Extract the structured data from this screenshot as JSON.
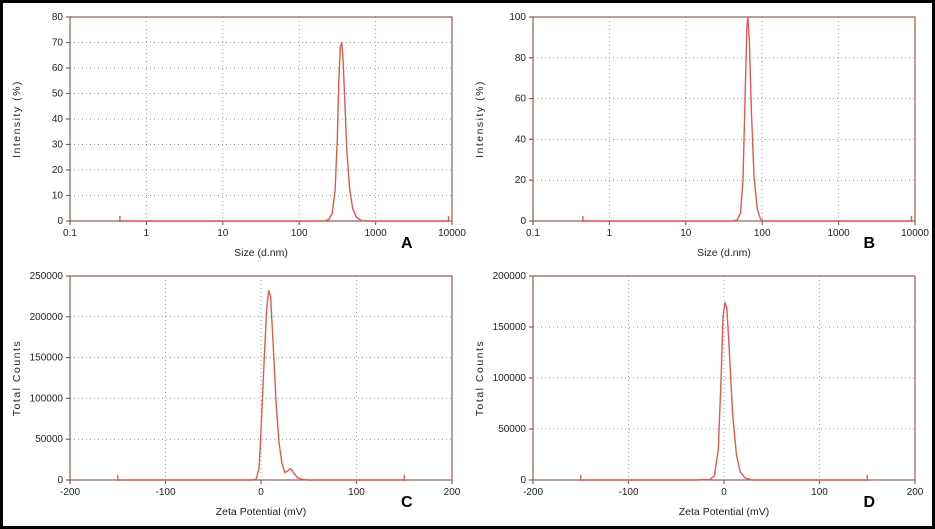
{
  "colors": {
    "curve": "#df5a52",
    "axis": "#8b5d52",
    "grid": "#9c9c9c",
    "text": "#222222",
    "frame_border": "#000000"
  },
  "chart_data": [
    {
      "panel_label": "A",
      "type": "line",
      "title": "",
      "xlabel": "Size (d.nm)",
      "ylabel": "Intensity (%)",
      "xscale": "log",
      "xlim": [
        0.1,
        10000
      ],
      "ylim": [
        0,
        80
      ],
      "xticks": [
        0.1,
        1,
        10,
        100,
        1000,
        10000
      ],
      "xtick_labels": [
        "0.1",
        "1",
        "10",
        "100",
        "1000",
        "10000"
      ],
      "yticks": [
        0,
        10,
        20,
        30,
        40,
        50,
        60,
        70,
        80
      ],
      "grid": "dotted",
      "legend": "none",
      "end_marks": [
        0.45,
        9000
      ],
      "series": [
        {
          "name": "Intensity",
          "points": [
            [
              0.45,
              0
            ],
            [
              150,
              0
            ],
            [
              210,
              0
            ],
            [
              245,
              0.6
            ],
            [
              270,
              3
            ],
            [
              295,
              12
            ],
            [
              315,
              32
            ],
            [
              330,
              55
            ],
            [
              345,
              68
            ],
            [
              360,
              70
            ],
            [
              375,
              63
            ],
            [
              395,
              47
            ],
            [
              420,
              28
            ],
            [
              455,
              13
            ],
            [
              500,
              5
            ],
            [
              560,
              1.5
            ],
            [
              650,
              0.2
            ],
            [
              800,
              0
            ],
            [
              9000,
              0
            ]
          ]
        }
      ]
    },
    {
      "panel_label": "B",
      "type": "line",
      "title": "",
      "xlabel": "Size (d.nm)",
      "ylabel": "Intensity (%)",
      "xscale": "log",
      "xlim": [
        0.1,
        10000
      ],
      "ylim": [
        0,
        100
      ],
      "xticks": [
        0.1,
        1,
        10,
        100,
        1000,
        10000
      ],
      "xtick_labels": [
        "0.1",
        "1",
        "10",
        "100",
        "1000",
        "10000"
      ],
      "yticks": [
        0,
        20,
        40,
        60,
        80,
        100
      ],
      "grid": "dotted",
      "legend": "none",
      "end_marks": [
        0.45,
        9000
      ],
      "series": [
        {
          "name": "Intensity",
          "points": [
            [
              0.45,
              0
            ],
            [
              40,
              0
            ],
            [
              47,
              0.5
            ],
            [
              52,
              4
            ],
            [
              56,
              20
            ],
            [
              60,
              65
            ],
            [
              63,
              95
            ],
            [
              65,
              100
            ],
            [
              68,
              88
            ],
            [
              72,
              55
            ],
            [
              78,
              22
            ],
            [
              86,
              6
            ],
            [
              95,
              1
            ],
            [
              105,
              0
            ],
            [
              9000,
              0
            ]
          ]
        }
      ]
    },
    {
      "panel_label": "C",
      "type": "line",
      "title": "",
      "xlabel": "Zeta Potential (mV)",
      "ylabel": "Total Counts",
      "xscale": "linear",
      "xlim": [
        -200,
        200
      ],
      "ylim": [
        0,
        250000
      ],
      "xticks": [
        -200,
        -100,
        0,
        100,
        200
      ],
      "xtick_labels": [
        "-200",
        "-100",
        "0",
        "100",
        "200"
      ],
      "yticks": [
        0,
        50000,
        100000,
        150000,
        200000,
        250000
      ],
      "grid": "dotted",
      "legend": "none",
      "end_marks": [
        -150,
        150
      ],
      "series": [
        {
          "name": "Counts",
          "points": [
            [
              -150,
              0
            ],
            [
              -30,
              0
            ],
            [
              -10,
              0
            ],
            [
              -5,
              1000
            ],
            [
              -2,
              15000
            ],
            [
              0,
              60000
            ],
            [
              3,
              140000
            ],
            [
              6,
              210000
            ],
            [
              8,
              232000
            ],
            [
              10,
              225000
            ],
            [
              13,
              160000
            ],
            [
              16,
              90000
            ],
            [
              19,
              45000
            ],
            [
              22,
              20000
            ],
            [
              25,
              9000
            ],
            [
              28,
              11000
            ],
            [
              31,
              14000
            ],
            [
              34,
              9000
            ],
            [
              38,
              3000
            ],
            [
              43,
              800
            ],
            [
              50,
              0
            ],
            [
              150,
              0
            ]
          ]
        }
      ]
    },
    {
      "panel_label": "D",
      "type": "line",
      "title": "",
      "xlabel": "Zeta Potential (mV)",
      "ylabel": "Total Counts",
      "xscale": "linear",
      "xlim": [
        -200,
        200
      ],
      "ylim": [
        0,
        200000
      ],
      "xticks": [
        -200,
        -100,
        0,
        100,
        200
      ],
      "xtick_labels": [
        "-200",
        "-100",
        "0",
        "100",
        "200"
      ],
      "yticks": [
        0,
        50000,
        100000,
        150000,
        200000
      ],
      "grid": "dotted",
      "legend": "none",
      "end_marks": [
        -150,
        150
      ],
      "series": [
        {
          "name": "Counts",
          "points": [
            [
              -150,
              0
            ],
            [
              -30,
              0
            ],
            [
              -15,
              500
            ],
            [
              -10,
              4000
            ],
            [
              -6,
              30000
            ],
            [
              -3,
              100000
            ],
            [
              -1,
              160000
            ],
            [
              1,
              174000
            ],
            [
              3,
              168000
            ],
            [
              6,
              120000
            ],
            [
              9,
              65000
            ],
            [
              13,
              25000
            ],
            [
              17,
              8000
            ],
            [
              22,
              2000
            ],
            [
              30,
              0
            ],
            [
              150,
              0
            ]
          ]
        }
      ]
    }
  ]
}
